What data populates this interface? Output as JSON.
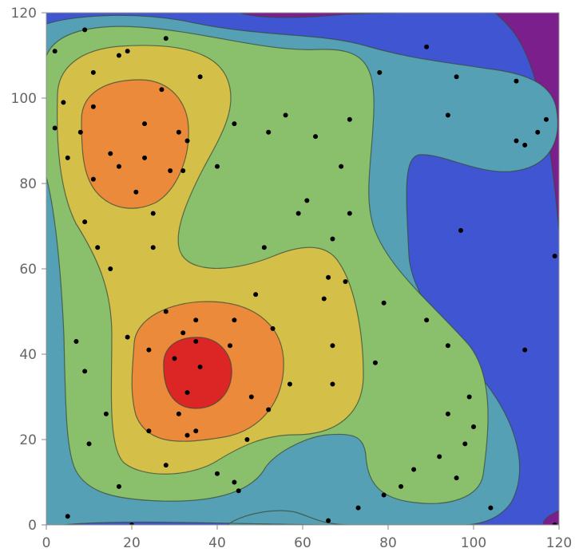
{
  "chart_data": {
    "type": "contour",
    "title": "",
    "xlabel": "",
    "ylabel": "",
    "xlim": [
      0,
      120
    ],
    "ylim": [
      0,
      120
    ],
    "x_ticks": [
      0,
      20,
      40,
      60,
      80,
      100,
      120
    ],
    "y_ticks": [
      0,
      20,
      40,
      60,
      80,
      100,
      120
    ],
    "x_tick_labels": [
      "0",
      "20",
      "40",
      "60",
      "80",
      "100",
      "120"
    ],
    "y_tick_labels": [
      "0",
      "20",
      "40",
      "60",
      "80",
      "100",
      "120"
    ],
    "grid": false,
    "legend": "none",
    "colors": {
      "level_0": "#7a1f8c",
      "level_1": "#3f55d2",
      "level_2": "#55a0b4",
      "level_3": "#8ac06c",
      "level_4": "#d4c048",
      "level_5": "#ea8a3a",
      "level_6": "#dc2626",
      "points": "#000000"
    },
    "points": [
      [
        2,
        111
      ],
      [
        9,
        116
      ],
      [
        19,
        111
      ],
      [
        28,
        114
      ],
      [
        11,
        106
      ],
      [
        4,
        99
      ],
      [
        11,
        98
      ],
      [
        2,
        93
      ],
      [
        8,
        92
      ],
      [
        5,
        86
      ],
      [
        11,
        81
      ],
      [
        15,
        87
      ],
      [
        17,
        84
      ],
      [
        23,
        94
      ],
      [
        27,
        102
      ],
      [
        36,
        105
      ],
      [
        31,
        92
      ],
      [
        33,
        90
      ],
      [
        23,
        86
      ],
      [
        32,
        83
      ],
      [
        21,
        78
      ],
      [
        25,
        73
      ],
      [
        29,
        83
      ],
      [
        9,
        71
      ],
      [
        12,
        65
      ],
      [
        25,
        65
      ],
      [
        15,
        60
      ],
      [
        17,
        110
      ],
      [
        44,
        94
      ],
      [
        52,
        92
      ],
      [
        56,
        96
      ],
      [
        63,
        91
      ],
      [
        71,
        95
      ],
      [
        69,
        84
      ],
      [
        89,
        112
      ],
      [
        78,
        106
      ],
      [
        96,
        105
      ],
      [
        110,
        104
      ],
      [
        94,
        96
      ],
      [
        117,
        95
      ],
      [
        115,
        92
      ],
      [
        110,
        90
      ],
      [
        112,
        89
      ],
      [
        61,
        76
      ],
      [
        59,
        73
      ],
      [
        71,
        73
      ],
      [
        67,
        67
      ],
      [
        51,
        65
      ],
      [
        97,
        69
      ],
      [
        119,
        63
      ],
      [
        40,
        84
      ],
      [
        66,
        58
      ],
      [
        70,
        57
      ],
      [
        49,
        54
      ],
      [
        65,
        53
      ],
      [
        79,
        52
      ],
      [
        89,
        48
      ],
      [
        28,
        50
      ],
      [
        35,
        48
      ],
      [
        44,
        48
      ],
      [
        53,
        46
      ],
      [
        32,
        45
      ],
      [
        19,
        44
      ],
      [
        24,
        41
      ],
      [
        35,
        43
      ],
      [
        43,
        42
      ],
      [
        67,
        42
      ],
      [
        94,
        42
      ],
      [
        112,
        41
      ],
      [
        7,
        43
      ],
      [
        30,
        39
      ],
      [
        36,
        37
      ],
      [
        77,
        38
      ],
      [
        9,
        36
      ],
      [
        57,
        33
      ],
      [
        67,
        33
      ],
      [
        33,
        31
      ],
      [
        48,
        30
      ],
      [
        99,
        30
      ],
      [
        52,
        27
      ],
      [
        31,
        26
      ],
      [
        94,
        26
      ],
      [
        14,
        26
      ],
      [
        100,
        23
      ],
      [
        35,
        22
      ],
      [
        24,
        22
      ],
      [
        33,
        21
      ],
      [
        47,
        20
      ],
      [
        10,
        19
      ],
      [
        98,
        19
      ],
      [
        92,
        16
      ],
      [
        28,
        14
      ],
      [
        86,
        13
      ],
      [
        40,
        12
      ],
      [
        96,
        11
      ],
      [
        44,
        10
      ],
      [
        17,
        9
      ],
      [
        83,
        9
      ],
      [
        45,
        8
      ],
      [
        79,
        7
      ],
      [
        73,
        4
      ],
      [
        104,
        4
      ],
      [
        5,
        2
      ],
      [
        66,
        1
      ],
      [
        20,
        0
      ],
      [
        119,
        0
      ]
    ]
  }
}
